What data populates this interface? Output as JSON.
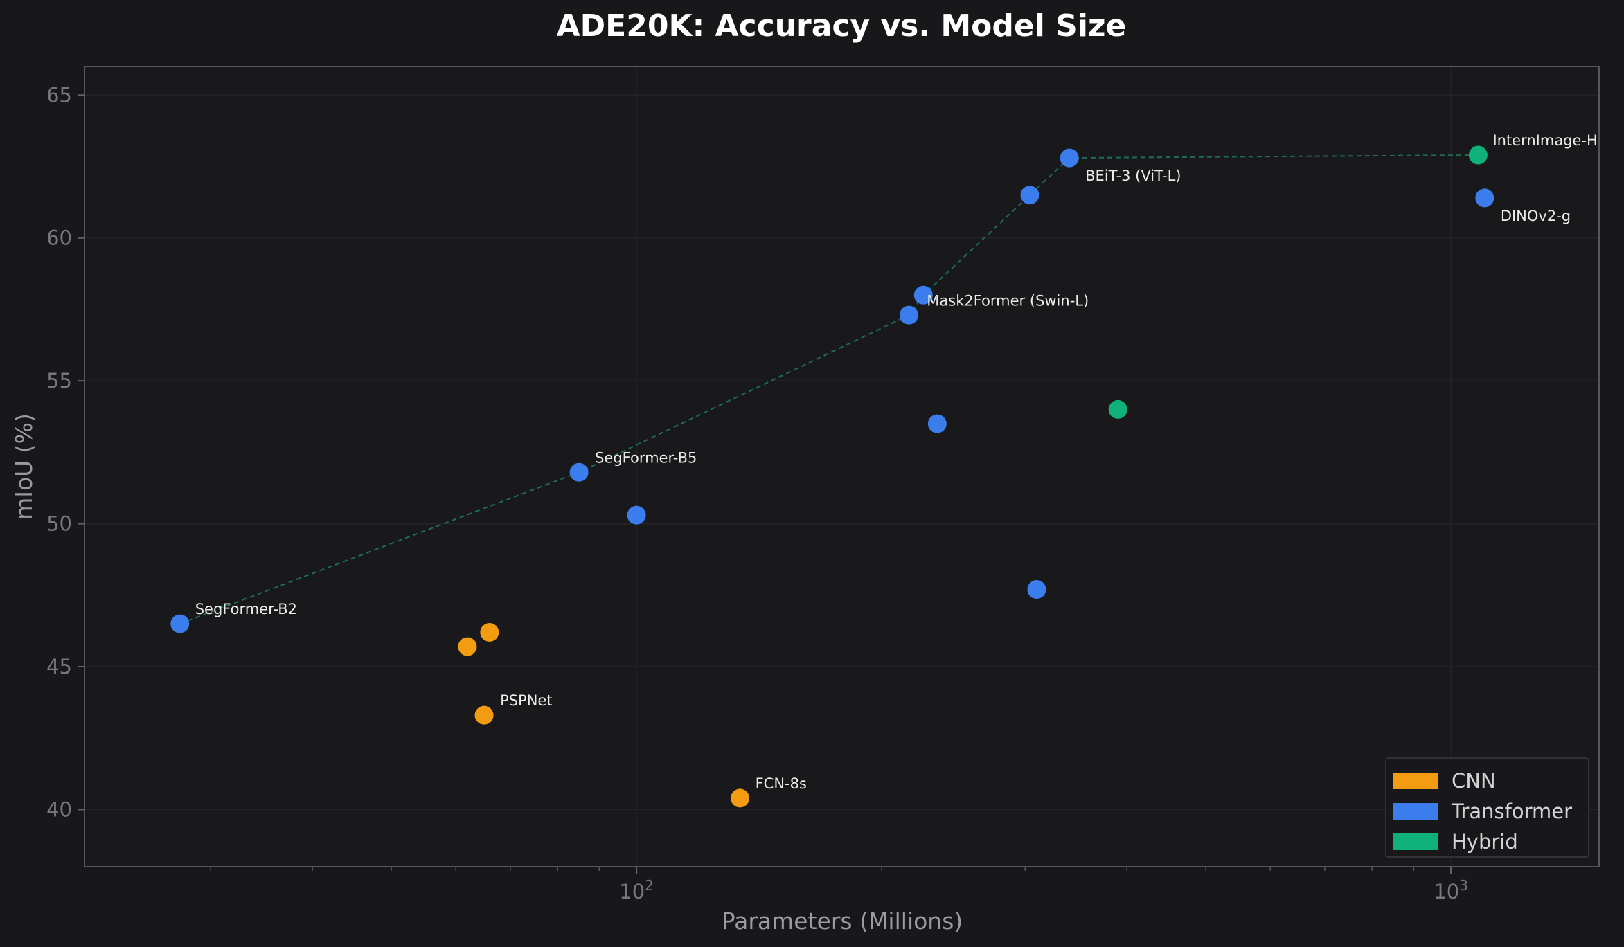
{
  "chart_data": {
    "type": "scatter",
    "title": "ADE20K: Accuracy vs. Model Size",
    "xlabel": "Parameters (Millions)",
    "ylabel": "mIoU (%)",
    "xscale": "log",
    "xlim": [
      21,
      1520
    ],
    "ylim": [
      38,
      66
    ],
    "xticks": [
      {
        "value": 100,
        "base": "10",
        "exp": "2"
      },
      {
        "value": 1000,
        "base": "10",
        "exp": "3"
      }
    ],
    "yticks": [
      40,
      45,
      50,
      55,
      60,
      65
    ],
    "grid": true,
    "legend_position": "bottom-right",
    "colors": {
      "CNN": "#f39c12",
      "Transformer": "#3b7ded",
      "Hybrid": "#10b07a",
      "frontier": "#1e6e56"
    },
    "legend": [
      "CNN",
      "Transformer",
      "Hybrid"
    ],
    "points": [
      {
        "x": 27.5,
        "y": 46.5,
        "category": "Transformer",
        "label": "SegFormer-B2"
      },
      {
        "x": 62,
        "y": 45.7,
        "category": "CNN",
        "label": ""
      },
      {
        "x": 66,
        "y": 46.2,
        "category": "CNN",
        "label": ""
      },
      {
        "x": 65,
        "y": 43.3,
        "category": "CNN",
        "label": "PSPNet"
      },
      {
        "x": 85,
        "y": 51.8,
        "category": "Transformer",
        "label": "SegFormer-B5"
      },
      {
        "x": 100,
        "y": 50.3,
        "category": "Transformer",
        "label": ""
      },
      {
        "x": 134,
        "y": 40.4,
        "category": "CNN",
        "label": "FCN-8s"
      },
      {
        "x": 216,
        "y": 57.3,
        "category": "Transformer",
        "label": ""
      },
      {
        "x": 225,
        "y": 58.0,
        "category": "Transformer",
        "label": "Mask2Former (Swin-L)"
      },
      {
        "x": 234,
        "y": 53.5,
        "category": "Transformer",
        "label": ""
      },
      {
        "x": 304,
        "y": 61.5,
        "category": "Transformer",
        "label": ""
      },
      {
        "x": 310,
        "y": 47.7,
        "category": "Transformer",
        "label": ""
      },
      {
        "x": 340,
        "y": 62.8,
        "category": "Transformer",
        "label": "BEiT-3 (ViT-L)"
      },
      {
        "x": 390,
        "y": 54.0,
        "category": "Hybrid",
        "label": ""
      },
      {
        "x": 1080,
        "y": 62.9,
        "category": "Hybrid",
        "label": "InternImage-H"
      },
      {
        "x": 1100,
        "y": 61.4,
        "category": "Transformer",
        "label": "DINOv2-g"
      }
    ],
    "frontier": [
      {
        "x": 27.5,
        "y": 46.5
      },
      {
        "x": 85,
        "y": 51.8
      },
      {
        "x": 216,
        "y": 57.3
      },
      {
        "x": 225,
        "y": 58.0
      },
      {
        "x": 304,
        "y": 61.5
      },
      {
        "x": 340,
        "y": 62.8
      },
      {
        "x": 1080,
        "y": 62.9
      }
    ]
  }
}
